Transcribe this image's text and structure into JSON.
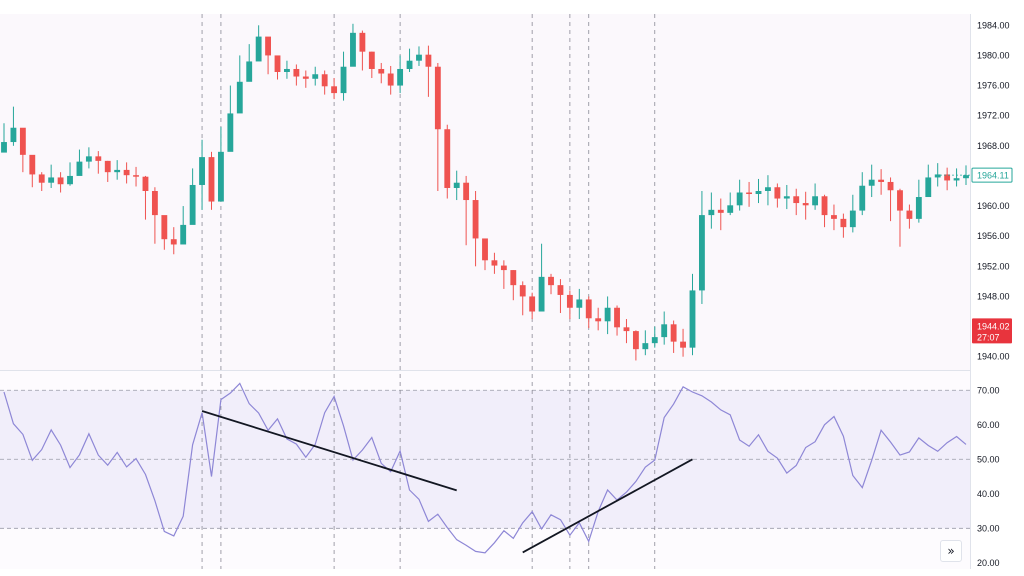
{
  "chart_data": {
    "type": "candlestick",
    "price_panel": {
      "y_ticks": [
        "1984.00",
        "1980.00",
        "1976.00",
        "1972.00",
        "1968.00",
        "1964.00",
        "1960.00",
        "1956.00",
        "1952.00",
        "1948.00",
        "1944.00",
        "1940.00"
      ],
      "ylim": [
        1938.5,
        1985.5
      ],
      "last_price_label": "1964.11",
      "current_price_label": "1944.02",
      "countdown_label": "27:07",
      "closes": [
        1968.5,
        1970.4,
        1966.8,
        1964.2,
        1963.1,
        1963.8,
        1962.9,
        1964.0,
        1965.9,
        1966.6,
        1966.0,
        1964.5,
        1964.8,
        1964.1,
        1963.9,
        1962.0,
        1958.8,
        1955.6,
        1954.9,
        1957.5,
        1962.8,
        1966.5,
        1960.6,
        1967.2,
        1972.3,
        1976.5,
        1979.2,
        1982.5,
        1980.0,
        1977.8,
        1978.2,
        1977.2,
        1976.9,
        1977.5,
        1975.9,
        1975.0,
        1978.5,
        1983.0,
        1980.5,
        1978.2,
        1977.6,
        1976.0,
        1978.2,
        1979.3,
        1980.1,
        1978.5,
        1970.2,
        1962.4,
        1963.1,
        1960.8,
        1955.7,
        1952.8,
        1952.1,
        1951.5,
        1949.5,
        1948.0,
        1946.0,
        1950.6,
        1949.5,
        1948.2,
        1946.5,
        1947.6,
        1945.1,
        1944.7,
        1946.5,
        1943.9,
        1943.4,
        1941.0,
        1941.8,
        1942.6,
        1944.3,
        1942.0,
        1941.2,
        1948.8,
        1958.8,
        1959.5,
        1959.1,
        1960.1,
        1961.8,
        1961.6,
        1962.0,
        1962.5,
        1961.0,
        1961.3,
        1960.4,
        1960.1,
        1961.3,
        1958.8,
        1958.3,
        1957.2,
        1959.4,
        1962.7,
        1963.5,
        1963.2,
        1962.1,
        1959.4,
        1958.3,
        1961.2,
        1963.8,
        1964.2,
        1963.4,
        1963.7,
        1964.1
      ],
      "highs": [
        1971.0,
        1973.2,
        1969.0,
        1966.0,
        1964.5,
        1965.5,
        1964.5,
        1965.8,
        1967.5,
        1967.8,
        1967.3,
        1966.0,
        1966.1,
        1965.8,
        1965.2,
        1964.0,
        1962.5,
        1958.0,
        1957.2,
        1960.0,
        1965.0,
        1968.8,
        1967.2,
        1970.5,
        1976.0,
        1980.0,
        1981.5,
        1984.0,
        1982.2,
        1979.5,
        1979.3,
        1978.8,
        1978.0,
        1978.5,
        1978.0,
        1977.0,
        1980.5,
        1984.2,
        1983.3,
        1980.5,
        1979.0,
        1978.6,
        1980.0,
        1980.9,
        1981.2,
        1981.3,
        1979.0,
        1970.8,
        1964.7,
        1964.0,
        1962.0,
        1955.0,
        1953.8,
        1952.8,
        1951.5,
        1950.0,
        1948.5,
        1955.0,
        1951.0,
        1950.3,
        1948.8,
        1949.0,
        1948.0,
        1946.5,
        1948.0,
        1946.8,
        1945.0,
        1943.5,
        1943.5,
        1944.0,
        1946.0,
        1944.8,
        1943.7,
        1951.0,
        1962.0,
        1961.8,
        1961.0,
        1961.8,
        1963.5,
        1963.2,
        1963.6,
        1964.1,
        1963.0,
        1962.8,
        1962.3,
        1961.9,
        1963.0,
        1961.5,
        1960.2,
        1959.0,
        1961.5,
        1964.5,
        1965.5,
        1964.9,
        1963.8,
        1962.3,
        1960.2,
        1963.5,
        1965.5,
        1965.7,
        1965.1,
        1965.0,
        1965.4
      ],
      "lows": [
        1967.3,
        1968.0,
        1964.5,
        1962.5,
        1962.0,
        1962.4,
        1961.8,
        1962.7,
        1964.5,
        1965.0,
        1964.3,
        1963.2,
        1963.5,
        1963.0,
        1962.6,
        1958.2,
        1955.0,
        1954.2,
        1953.6,
        1956.0,
        1960.5,
        1959.5,
        1959.5,
        1965.0,
        1970.8,
        1974.8,
        1977.8,
        1979.6,
        1977.5,
        1976.8,
        1976.9,
        1976.0,
        1975.7,
        1976.0,
        1974.8,
        1974.2,
        1974.0,
        1978.8,
        1978.0,
        1977.0,
        1976.3,
        1974.8,
        1975.0,
        1977.8,
        1978.6,
        1974.5,
        1962.0,
        1961.0,
        1960.8,
        1954.8,
        1952.0,
        1951.5,
        1951.0,
        1949.0,
        1947.5,
        1945.5,
        1945.0,
        1948.8,
        1948.3,
        1945.8,
        1945.0,
        1945.0,
        1943.8,
        1943.5,
        1943.0,
        1942.8,
        1941.8,
        1939.5,
        1940.2,
        1941.2,
        1941.6,
        1940.5,
        1940.0,
        1940.2,
        1947.0,
        1957.0,
        1956.8,
        1958.8,
        1959.4,
        1959.9,
        1960.4,
        1960.1,
        1959.8,
        1959.6,
        1958.8,
        1958.2,
        1959.5,
        1957.2,
        1956.8,
        1955.8,
        1956.5,
        1958.8,
        1961.2,
        1961.5,
        1958.0,
        1954.6,
        1957.0,
        1957.8,
        1961.5,
        1962.6,
        1962.1,
        1962.6,
        1962.8
      ]
    },
    "rsi_panel": {
      "y_ticks": [
        "70.00",
        "60.00",
        "50.00",
        "40.00",
        "30.00",
        "20.00"
      ],
      "ylim": [
        18.5,
        75
      ],
      "upper_band": 70,
      "middle_band": 50,
      "lower_band": 30,
      "values": [
        69.5,
        60.3,
        57.2,
        49.7,
        52.8,
        58.5,
        54.1,
        47.6,
        51.3,
        57.4,
        51.2,
        48.3,
        52.0,
        47.8,
        50.2,
        45.6,
        38.0,
        29.1,
        27.8,
        33.5,
        54.2,
        63.5,
        45.0,
        67.3,
        69.2,
        72.0,
        66.1,
        63.4,
        58.4,
        61.7,
        55.9,
        54.4,
        50.6,
        54.3,
        63.5,
        68.2,
        59.7,
        49.8,
        52.7,
        56.3,
        48.8,
        46.4,
        52.4,
        41.1,
        38.4,
        32.0,
        34.1,
        30.2,
        26.7,
        25.1,
        23.3,
        22.9,
        25.8,
        29.3,
        27.1,
        31.6,
        34.8,
        29.8,
        33.9,
        32.5,
        28.0,
        31.6,
        26.2,
        34.9,
        41.1,
        38.2,
        40.5,
        43.6,
        47.7,
        49.8,
        62.1,
        66.0,
        71.0,
        69.5,
        68.4,
        66.6,
        64.3,
        62.9,
        55.6,
        53.8,
        57.1,
        52.3,
        50.3,
        46.0,
        48.2,
        53.4,
        55.1,
        60.0,
        62.4,
        56.7,
        45.3,
        41.8,
        49.7,
        58.4,
        55.0,
        51.2,
        52.1,
        56.2,
        54.0,
        52.3,
        54.8,
        56.6,
        54.3
      ]
    }
  },
  "ui": {
    "scroll_button_icon": "double-chevron-right-icon",
    "scroll_button_glyph": "»"
  },
  "colors": {
    "up": "#26a69a",
    "down": "#ef5350",
    "rsi_line": "#8e87d6",
    "rsi_band_fill": "#f1eefa",
    "background": "#fbf8fc",
    "drawing": "#131722",
    "current_price_bg": "#e8343d",
    "last_price_border": "#26a69a"
  }
}
